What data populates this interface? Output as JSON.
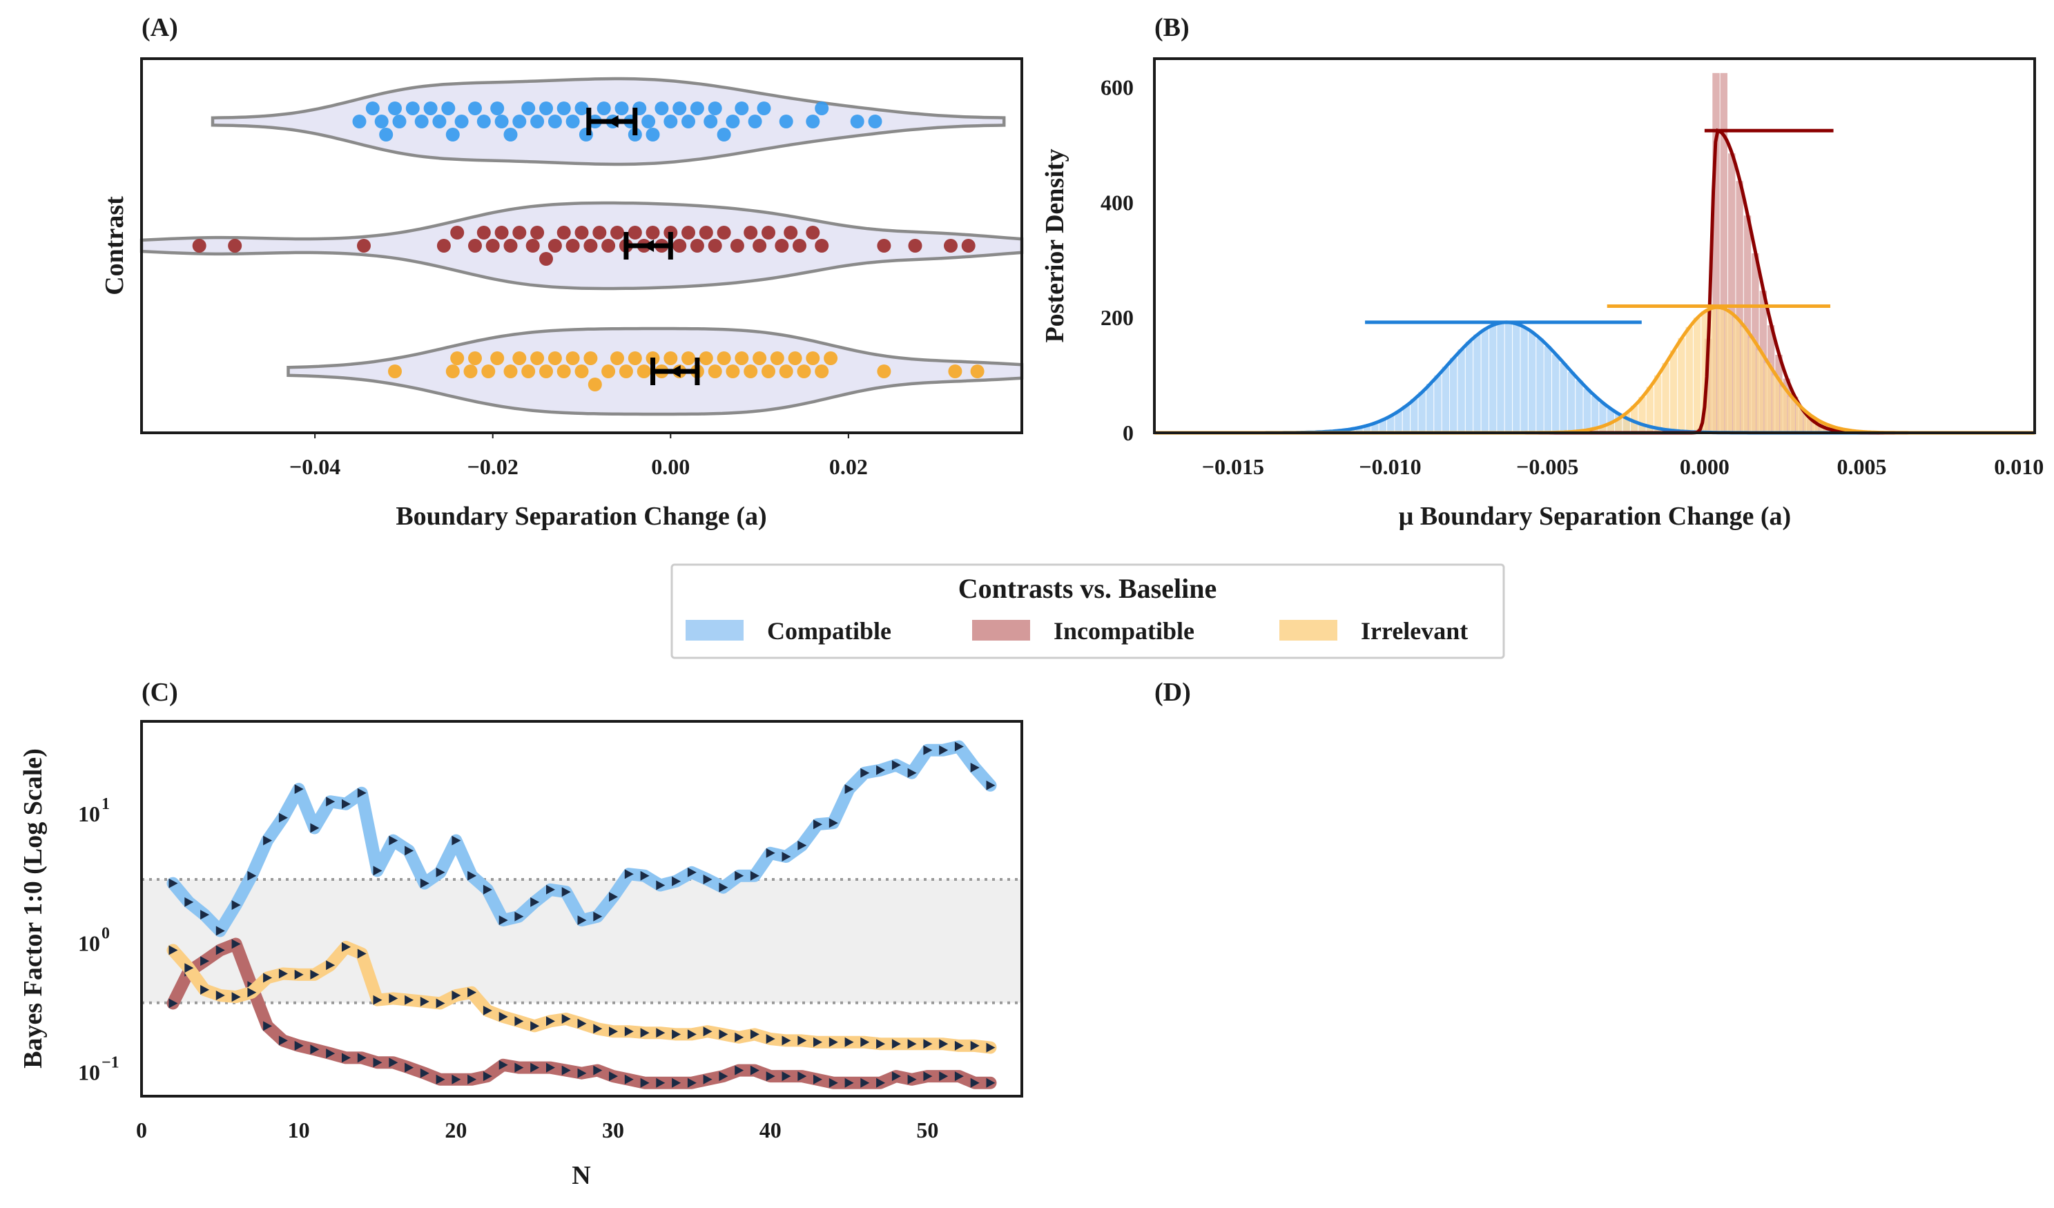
{
  "colors": {
    "compatible": "#3399ee",
    "compatible_light": "#a8d0f5",
    "incompatible": "#9a2a2a",
    "incompatible_dark": "#8b0000",
    "incompatible_light": "#d49a9a",
    "irrelevant": "#f5a623",
    "irrelevant_light": "#fcd99a",
    "violin_fill": "#e6e6f5",
    "violin_edge": "#8a8a8a",
    "band": "#efefef",
    "guide": "#999999",
    "marker": "#1a2a44"
  },
  "legend": {
    "title": "Contrasts vs. Baseline",
    "items": [
      {
        "label": "Compatible",
        "color": "#a8d0f5"
      },
      {
        "label": "Incompatible",
        "color": "#d49a9a"
      },
      {
        "label": "Irrelevant",
        "color": "#fcd99a"
      }
    ],
    "placement": "center"
  },
  "chart_data": [
    {
      "panel": "(A)",
      "type": "scatter",
      "subtype": "violin-swarm",
      "title": "",
      "xlabel": "Boundary Separation Change (a)",
      "ylabel": "Contrast",
      "xlim": [
        -0.0595,
        0.0395
      ],
      "xticks": [
        -0.04,
        -0.02,
        0.0,
        0.02
      ],
      "xtick_labels": [
        "−0.04",
        "−0.02",
        "0.00",
        "0.02"
      ],
      "series": [
        {
          "name": "Compatible",
          "row": 0,
          "mean": -0.0065,
          "ci": [
            -0.0092,
            -0.004
          ],
          "range": [
            -0.0515,
            0.0375
          ],
          "values": [
            -0.035,
            -0.0335,
            -0.0325,
            -0.032,
            -0.031,
            -0.0305,
            -0.029,
            -0.028,
            -0.027,
            -0.026,
            -0.025,
            -0.0245,
            -0.0235,
            -0.022,
            -0.021,
            -0.0195,
            -0.019,
            -0.018,
            -0.017,
            -0.016,
            -0.015,
            -0.014,
            -0.013,
            -0.012,
            -0.011,
            -0.01,
            -0.0095,
            -0.0085,
            -0.0075,
            -0.0065,
            -0.0055,
            -0.0045,
            -0.004,
            -0.0035,
            -0.0025,
            -0.002,
            -0.001,
            0.0,
            0.001,
            0.002,
            0.003,
            0.0045,
            0.005,
            0.006,
            0.007,
            0.008,
            0.0095,
            0.0105,
            0.013,
            0.016,
            0.017,
            0.021,
            0.023
          ]
        },
        {
          "name": "Incompatible",
          "row": 1,
          "mean": -0.0025,
          "ci": [
            -0.005,
            0.0
          ],
          "range": [
            -0.0595,
            0.0395
          ],
          "values": [
            -0.053,
            -0.049,
            -0.0345,
            -0.0255,
            -0.024,
            -0.022,
            -0.021,
            -0.02,
            -0.019,
            -0.018,
            -0.017,
            -0.0155,
            -0.015,
            -0.014,
            -0.013,
            -0.012,
            -0.011,
            -0.01,
            -0.009,
            -0.008,
            -0.007,
            -0.006,
            -0.005,
            -0.004,
            -0.003,
            -0.002,
            -0.001,
            0.0,
            0.001,
            0.002,
            0.003,
            0.004,
            0.005,
            0.006,
            0.0075,
            0.009,
            0.01,
            0.011,
            0.0125,
            0.0135,
            0.0145,
            0.016,
            0.017,
            0.024,
            0.0275,
            0.0315,
            0.0335
          ]
        },
        {
          "name": "Irrelevant",
          "row": 2,
          "mean": 0.0005,
          "ci": [
            -0.002,
            0.003
          ],
          "range": [
            -0.043,
            0.0395
          ],
          "values": [
            -0.031,
            -0.0245,
            -0.024,
            -0.0225,
            -0.022,
            -0.0205,
            -0.0195,
            -0.018,
            -0.017,
            -0.016,
            -0.015,
            -0.014,
            -0.013,
            -0.012,
            -0.011,
            -0.01,
            -0.009,
            -0.0085,
            -0.007,
            -0.006,
            -0.005,
            -0.004,
            -0.003,
            -0.002,
            -0.001,
            0.0,
            0.001,
            0.002,
            0.003,
            0.004,
            0.005,
            0.006,
            0.007,
            0.008,
            0.009,
            0.01,
            0.011,
            0.012,
            0.013,
            0.014,
            0.015,
            0.016,
            0.017,
            0.018,
            0.024,
            0.032,
            0.0345
          ]
        }
      ]
    },
    {
      "panel": "(B)",
      "type": "area",
      "subtype": "histogram-kde",
      "title": "",
      "xlabel": "μ Boundary Separation Change (a)",
      "ylabel": "Posterior Density",
      "xlim": [
        -0.0175,
        0.0105
      ],
      "ylim": [
        0,
        650
      ],
      "xticks": [
        -0.015,
        -0.01,
        -0.005,
        0.0,
        0.005,
        0.01
      ],
      "xtick_labels": [
        "−0.015",
        "−0.010",
        "−0.005",
        "0.000",
        "0.005",
        "0.010"
      ],
      "yticks": [
        0,
        200,
        400,
        600
      ],
      "ytick_labels": [
        "0",
        "200",
        "400",
        "600"
      ],
      "series": [
        {
          "name": "Compatible",
          "mu": -0.0063,
          "sd": 0.0019,
          "peak": 192,
          "hdi": [
            -0.0108,
            -0.002
          ],
          "hdi_y": 192
        },
        {
          "name": "Incompatible",
          "mu": 0.0004,
          "sd_left": 0.00018,
          "sd_right": 0.0012,
          "peak": 525,
          "hist_peak": 625,
          "hdi": [
            0.0,
            0.0041
          ],
          "hdi_y": 525
        },
        {
          "name": "Irrelevant",
          "mu": 0.0004,
          "sd": 0.0015,
          "peak": 218,
          "hdi": [
            -0.0031,
            0.004
          ],
          "hdi_y": 220
        }
      ]
    },
    {
      "panel": "(C)",
      "type": "line",
      "title": "",
      "xlabel": "N",
      "ylabel": "Bayes Factor 1:0 (Log Scale)",
      "xlim": [
        0,
        56
      ],
      "ylim_log10": [
        -1.2,
        1.7
      ],
      "xticks": [
        0,
        10,
        20,
        30,
        40,
        50
      ],
      "xtick_labels": [
        "0",
        "10",
        "20",
        "30",
        "40",
        "50"
      ],
      "yticks_log10": [
        -1,
        0,
        1
      ],
      "ytick_base": "10",
      "ytick_exponents": [
        "−1",
        "0",
        "1"
      ],
      "band_bf": [
        0.333,
        3.0
      ],
      "x": [
        2,
        3,
        4,
        5,
        6,
        7,
        8,
        9,
        10,
        11,
        12,
        13,
        14,
        15,
        16,
        17,
        18,
        19,
        20,
        21,
        22,
        23,
        24,
        25,
        26,
        27,
        28,
        29,
        30,
        31,
        32,
        33,
        34,
        35,
        36,
        37,
        38,
        39,
        40,
        41,
        42,
        43,
        44,
        45,
        46,
        47,
        48,
        49,
        50,
        51,
        52,
        53,
        54
      ],
      "series": [
        {
          "name": "Compatible",
          "values": [
            2.8,
            2.0,
            1.6,
            1.2,
            1.9,
            3.2,
            6.0,
            9.0,
            15.0,
            7.5,
            12.0,
            11.5,
            14.0,
            3.5,
            6.0,
            5.0,
            2.8,
            3.4,
            6.0,
            3.2,
            2.5,
            1.45,
            1.55,
            2.0,
            2.5,
            2.4,
            1.45,
            1.55,
            2.2,
            3.3,
            3.2,
            2.7,
            2.9,
            3.4,
            3.0,
            2.6,
            3.2,
            3.2,
            4.8,
            4.5,
            5.5,
            8.0,
            8.2,
            15.0,
            20.0,
            21.0,
            23.0,
            20.0,
            30.0,
            30.0,
            32.0,
            22.0,
            16.0
          ]
        },
        {
          "name": "Incompatible",
          "values": [
            0.33,
            0.58,
            0.7,
            0.85,
            0.95,
            0.45,
            0.22,
            0.17,
            0.155,
            0.145,
            0.135,
            0.125,
            0.125,
            0.115,
            0.115,
            0.105,
            0.095,
            0.085,
            0.085,
            0.085,
            0.09,
            0.11,
            0.105,
            0.105,
            0.105,
            0.1,
            0.095,
            0.1,
            0.09,
            0.085,
            0.08,
            0.08,
            0.08,
            0.08,
            0.085,
            0.09,
            0.1,
            0.1,
            0.09,
            0.09,
            0.09,
            0.085,
            0.08,
            0.08,
            0.08,
            0.08,
            0.09,
            0.085,
            0.09,
            0.09,
            0.09,
            0.08,
            0.08
          ]
        },
        {
          "name": "Irrelevant",
          "values": [
            0.85,
            0.62,
            0.42,
            0.38,
            0.37,
            0.4,
            0.52,
            0.56,
            0.55,
            0.55,
            0.65,
            0.9,
            0.8,
            0.35,
            0.36,
            0.35,
            0.34,
            0.33,
            0.38,
            0.4,
            0.29,
            0.26,
            0.24,
            0.22,
            0.24,
            0.25,
            0.23,
            0.21,
            0.2,
            0.2,
            0.195,
            0.195,
            0.19,
            0.19,
            0.2,
            0.19,
            0.18,
            0.19,
            0.175,
            0.17,
            0.17,
            0.165,
            0.165,
            0.165,
            0.165,
            0.16,
            0.16,
            0.16,
            0.16,
            0.16,
            0.155,
            0.155,
            0.15
          ]
        }
      ]
    },
    {
      "panel": "(D)",
      "type": "table",
      "title": ""
    }
  ]
}
